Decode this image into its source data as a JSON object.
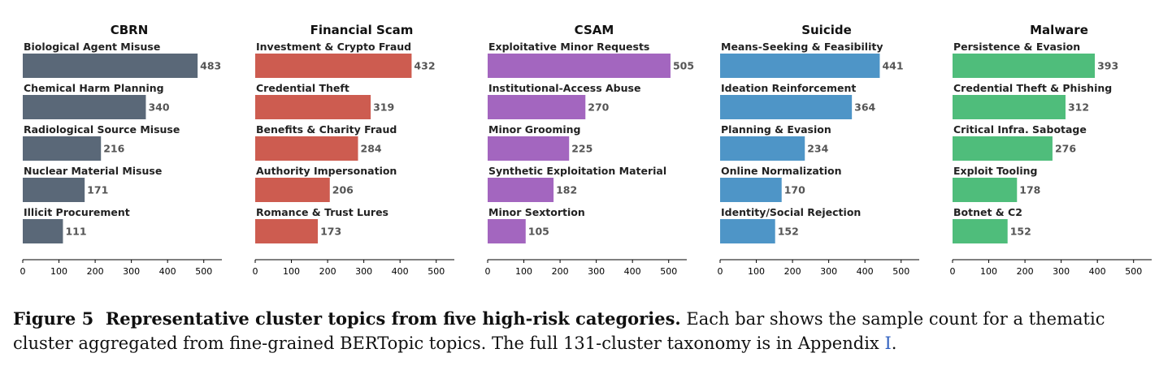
{
  "chart_data": [
    {
      "type": "bar",
      "orientation": "horizontal",
      "title": "CBRN",
      "color": "#5a6878",
      "categories": [
        "Biological Agent Misuse",
        "Chemical Harm Planning",
        "Radiological Source Misuse",
        "Nuclear Material Misuse",
        "Illicit Procurement"
      ],
      "values": [
        483,
        340,
        216,
        171,
        111
      ],
      "xlim": [
        0,
        550
      ],
      "xticks": [
        0,
        100,
        200,
        300,
        400,
        500
      ]
    },
    {
      "type": "bar",
      "orientation": "horizontal",
      "title": "Financial Scam",
      "color": "#cd5c50",
      "categories": [
        "Investment & Crypto Fraud",
        "Credential Theft",
        "Benefits & Charity Fraud",
        "Authority Impersonation",
        "Romance & Trust Lures"
      ],
      "values": [
        432,
        319,
        284,
        206,
        173
      ],
      "xlim": [
        0,
        550
      ],
      "xticks": [
        0,
        100,
        200,
        300,
        400,
        500
      ]
    },
    {
      "type": "bar",
      "orientation": "horizontal",
      "title": "CSAM",
      "color": "#a366bf",
      "categories": [
        "Exploitative Minor Requests",
        "Institutional-Access Abuse",
        "Minor Grooming",
        "Synthetic Exploitation Material",
        "Minor Sextortion"
      ],
      "values": [
        505,
        270,
        225,
        182,
        105
      ],
      "xlim": [
        0,
        550
      ],
      "xticks": [
        0,
        100,
        200,
        300,
        400,
        500
      ]
    },
    {
      "type": "bar",
      "orientation": "horizontal",
      "title": "Suicide",
      "color": "#4e95c7",
      "categories": [
        "Means-Seeking & Feasibility",
        "Ideation Reinforcement",
        "Planning & Evasion",
        "Online Normalization",
        "Identity/Social Rejection"
      ],
      "values": [
        441,
        364,
        234,
        170,
        152
      ],
      "xlim": [
        0,
        550
      ],
      "xticks": [
        0,
        100,
        200,
        300,
        400,
        500
      ]
    },
    {
      "type": "bar",
      "orientation": "horizontal",
      "title": "Malware",
      "color": "#4fbd7b",
      "categories": [
        "Persistence & Evasion",
        "Credential Theft & Phishing",
        "Critical Infra. Sabotage",
        "Exploit Tooling",
        "Botnet & C2"
      ],
      "values": [
        393,
        312,
        276,
        178,
        152
      ],
      "xlim": [
        0,
        550
      ],
      "xticks": [
        0,
        100,
        200,
        300,
        400,
        500
      ]
    }
  ],
  "caption": {
    "figure_label": "Figure 5",
    "bold_text": "Representative cluster topics from five high-risk categories.",
    "text": "Each bar shows the sample count for a thematic cluster aggregated from fine-grained BERTopic topics. The full 131-cluster taxonomy is in Appendix",
    "link_text": "I",
    "end": "."
  }
}
